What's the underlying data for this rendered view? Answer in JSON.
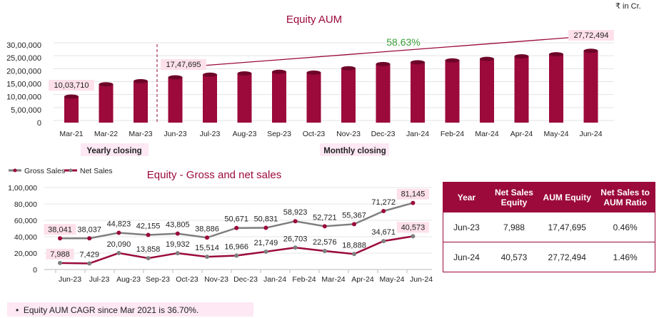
{
  "unit_label": "₹ in Cr.",
  "chart_data": [
    {
      "type": "bar",
      "title": "Equity AUM",
      "categories": [
        "Mar-21",
        "Mar-22",
        "Mar-23",
        "Jun-23",
        "Jul-23",
        "Aug-23",
        "Sep-23",
        "Oct-23",
        "Nov-23",
        "Dec-23",
        "Jan-24",
        "Feb-24",
        "Mar-24",
        "Apr-24",
        "May-24",
        "Jun-24"
      ],
      "values": [
        1003710,
        1480000,
        1600000,
        1747695,
        1850000,
        1900000,
        1960000,
        1930000,
        2100000,
        2260000,
        2330000,
        2400000,
        2460000,
        2560000,
        2640000,
        2772494
      ],
      "yticks": [
        "0",
        "5,00,000",
        "10,00,000",
        "15,00,000",
        "20,00,000",
        "25,00,000",
        "30,00,000"
      ],
      "ylim": [
        0,
        3000000
      ],
      "data_labels": {
        "Mar-21": "10,03,710",
        "Jun-23": "17,47,695",
        "Jun-24": "27,72,494"
      },
      "growth_annotation": "58.63%",
      "group_labels": [
        "Yearly closing",
        "Monthly closing"
      ],
      "bar_color": "#9b0a3a",
      "grid": true
    },
    {
      "type": "line",
      "title": "Equity - Gross and net sales",
      "categories": [
        "Jun-23",
        "Jul-23",
        "Aug-23",
        "Sep-23",
        "Oct-23",
        "Nov-23",
        "Dec-23",
        "Jan-24",
        "Feb-24",
        "Mar-24",
        "Apr-24",
        "May-24",
        "Jun-24"
      ],
      "series": [
        {
          "name": "Gross Sales",
          "color": "#7f7f7f",
          "values": [
            38041,
            38037,
            44823,
            42155,
            43805,
            38886,
            50671,
            50831,
            58923,
            52721,
            55367,
            71272,
            81145
          ],
          "labels": [
            "38,041",
            "38,037",
            "44,823",
            "42,155",
            "43,805",
            "38,886",
            "50,671",
            "50,831",
            "58,923",
            "52,721",
            "55,367",
            "71,272",
            "81,145"
          ]
        },
        {
          "name": "Net Sales",
          "color": "#9b0a3a",
          "values": [
            7988,
            7429,
            20090,
            13858,
            19932,
            15514,
            16966,
            21749,
            26703,
            22576,
            18888,
            34671,
            40573
          ],
          "labels": [
            "7,988",
            "7,429",
            "20,090",
            "13,858",
            "19,932",
            "15,514",
            "16,966",
            "21,749",
            "26,703",
            "22,576",
            "18,888",
            "34,671",
            "40,573"
          ]
        }
      ],
      "yticks": [
        "0",
        "20,000",
        "40,000",
        "60,000",
        "80,000",
        "1,00,000"
      ],
      "ylim": [
        0,
        100000
      ],
      "legend": "top-left",
      "grid": true
    }
  ],
  "table": {
    "headers": [
      "Year",
      "Net Sales Equity",
      "AUM Equity",
      "Net Sales to AUM Ratio"
    ],
    "rows": [
      [
        "Jun-23",
        "7,988",
        "17,47,695",
        "0.46%"
      ],
      [
        "Jun-24",
        "40,573",
        "27,72,494",
        "1.46%"
      ]
    ]
  },
  "note": "Equity AUM CAGR since Mar 2021 is 36.70%."
}
